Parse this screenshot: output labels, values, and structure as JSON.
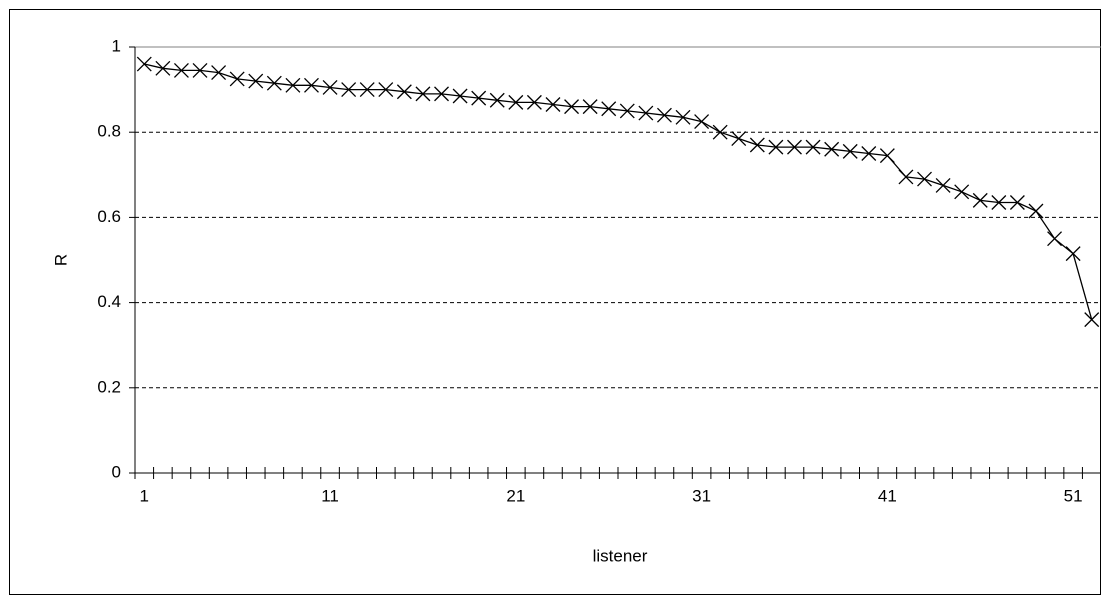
{
  "chart_data": {
    "type": "line",
    "x_label": "listener",
    "y_label": "R",
    "categories": [
      "1",
      null,
      null,
      null,
      null,
      null,
      null,
      null,
      null,
      null,
      "11",
      null,
      null,
      null,
      null,
      null,
      null,
      null,
      null,
      null,
      "21",
      null,
      null,
      null,
      null,
      null,
      null,
      null,
      null,
      null,
      "31",
      null,
      null,
      null,
      null,
      null,
      null,
      null,
      null,
      null,
      "41",
      null,
      null,
      null,
      null,
      null,
      null,
      null,
      null,
      null,
      "51",
      null
    ],
    "series": [
      {
        "color": "#000000",
        "values": [
          0.96,
          0.95,
          0.945,
          0.945,
          0.94,
          0.925,
          0.92,
          0.915,
          0.91,
          0.91,
          0.905,
          0.9,
          0.9,
          0.9,
          0.895,
          0.89,
          0.89,
          0.885,
          0.88,
          0.875,
          0.87,
          0.87,
          0.865,
          0.86,
          0.86,
          0.855,
          0.85,
          0.845,
          0.84,
          0.835,
          0.825,
          0.8,
          0.785,
          0.77,
          0.765,
          0.765,
          0.765,
          0.76,
          0.755,
          0.75,
          0.745,
          0.695,
          0.69,
          0.675,
          0.66,
          0.64,
          0.635,
          0.635,
          0.615,
          0.55,
          0.515,
          0.36
        ]
      }
    ],
    "ylim": [
      0,
      1
    ],
    "yticks": [
      0,
      0.2,
      0.4,
      0.6,
      0.8,
      1
    ],
    "grid": true
  }
}
